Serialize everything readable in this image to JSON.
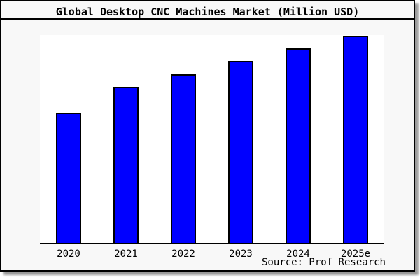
{
  "window": {
    "card_background": "#f8f8f8",
    "card_border_color": "#000000",
    "plot_background": "#ffffff",
    "shadow_color": "#9a9a9a"
  },
  "chart": {
    "title": "Global Desktop CNC Machines Market (Million USD)",
    "source": "Source: Prof Research"
  },
  "chart_data": {
    "type": "bar",
    "title": "Global Desktop CNC Machines Market (Million USD)",
    "categories": [
      "2020",
      "2021",
      "2022",
      "2023",
      "2024",
      "2025e"
    ],
    "values": [
      187,
      224,
      243,
      262,
      280,
      298
    ],
    "value_units": "relative estimate from bar pixel heights (no y-axis tick labels shown)",
    "xlabel": "",
    "ylabel": "",
    "ylim": [
      0,
      299
    ],
    "grid": false,
    "legend": false,
    "y_axis_visible": false,
    "bar_color": "#0000ff",
    "bar_border_color": "#000000",
    "annotations": [
      "Source: Prof Research"
    ]
  }
}
